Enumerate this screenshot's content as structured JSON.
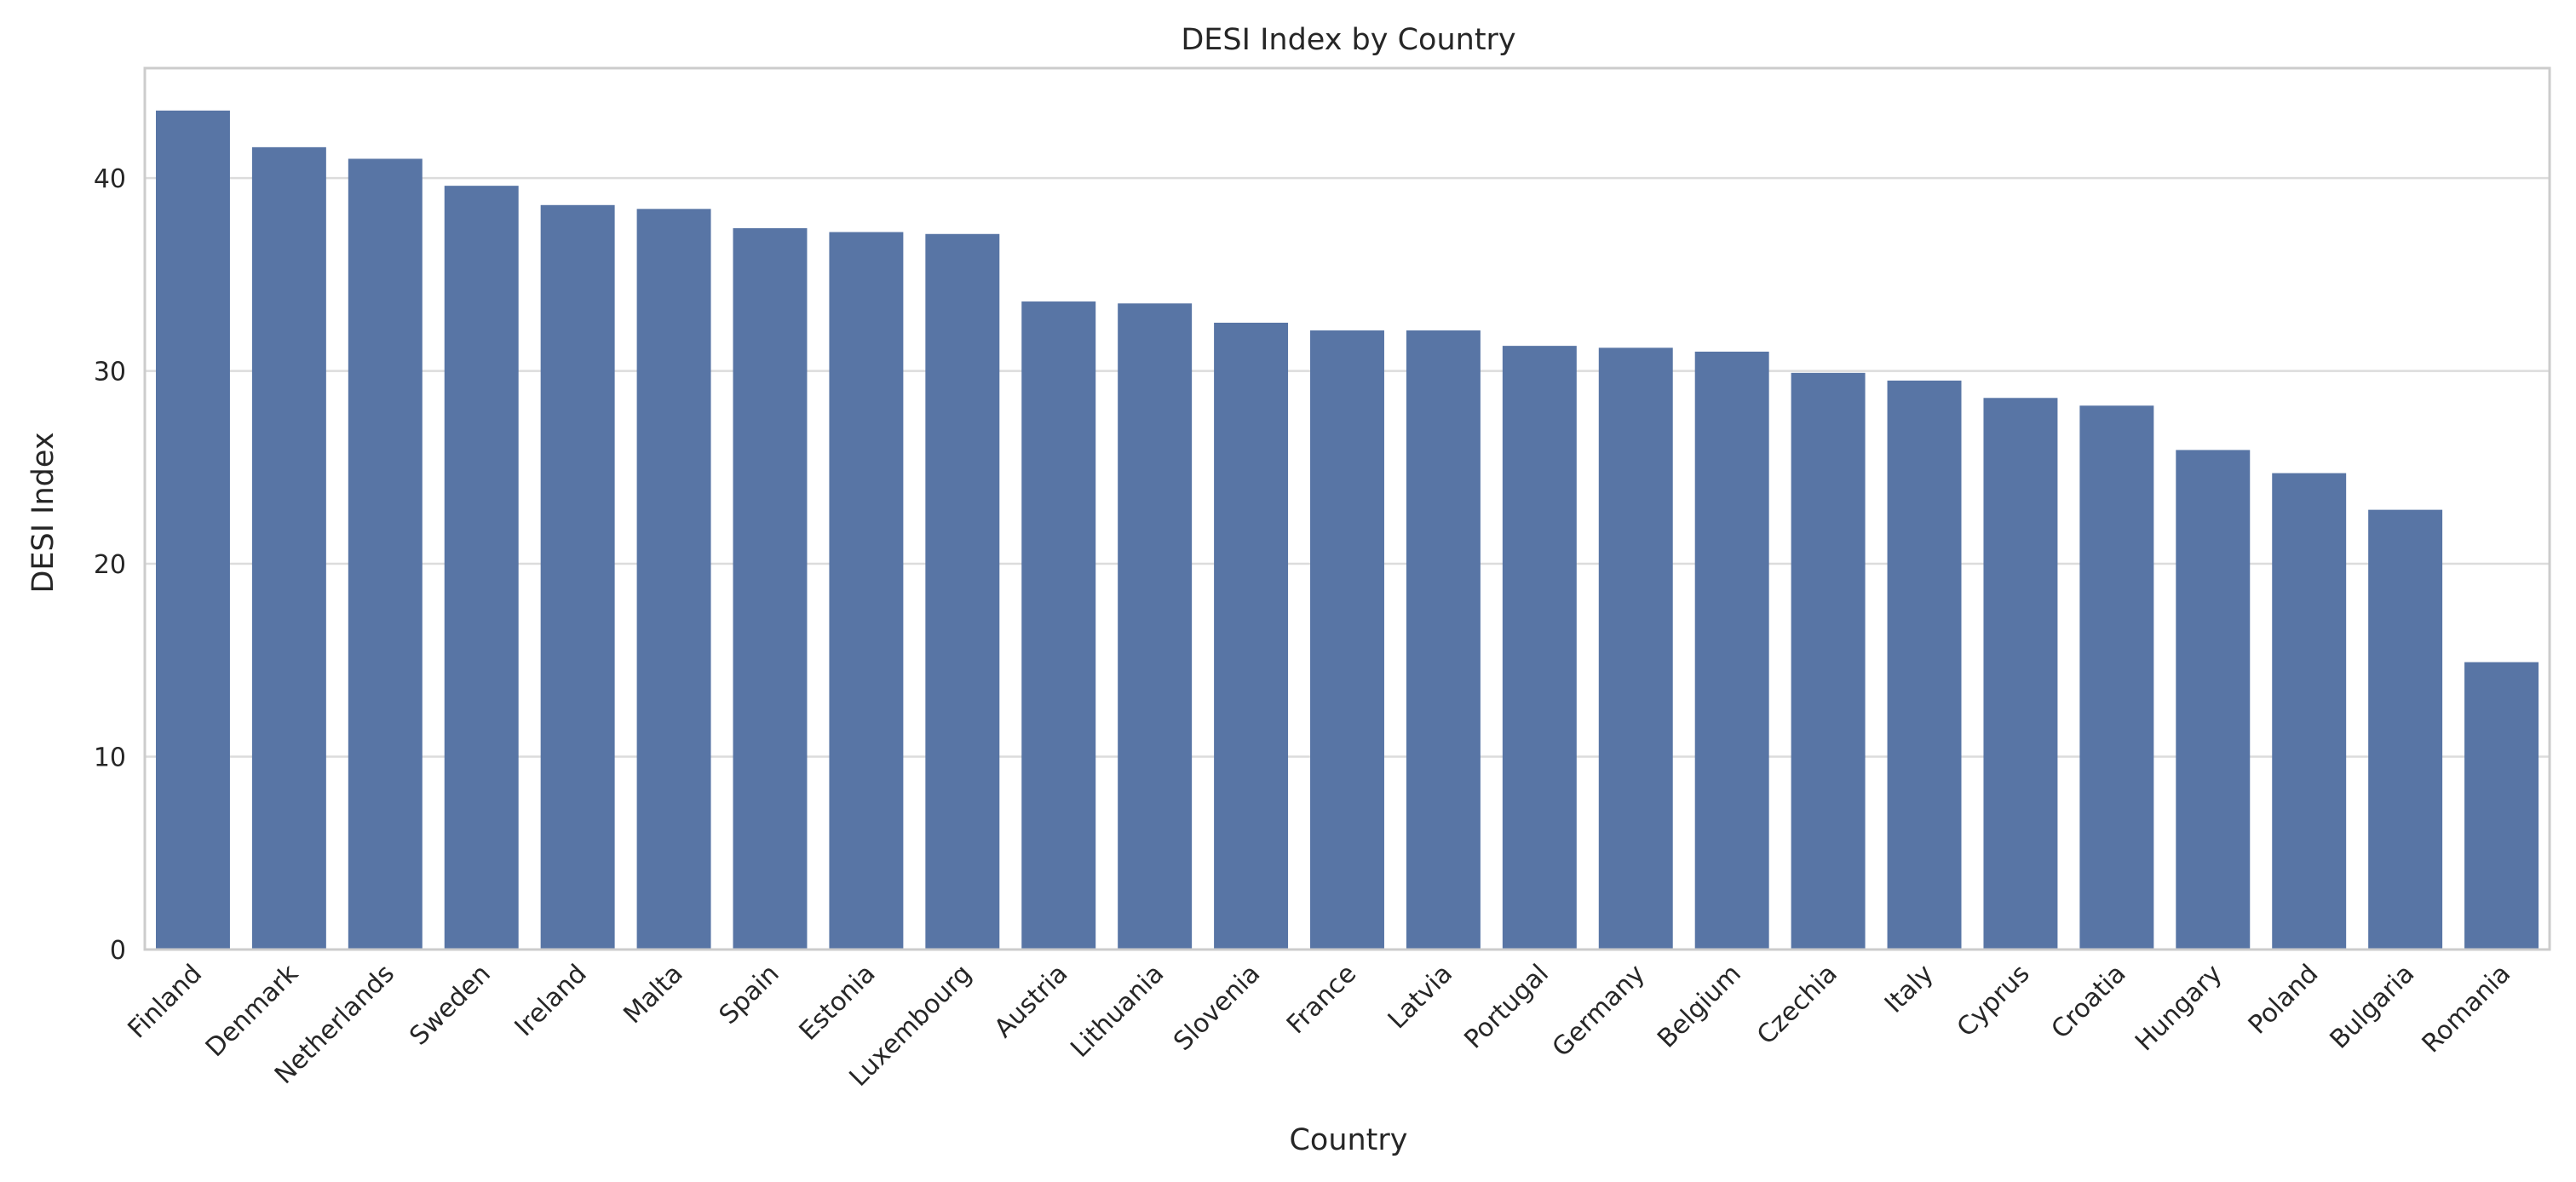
{
  "chart_data": {
    "type": "bar",
    "title": "DESI Index by Country",
    "xlabel": "Country",
    "ylabel": "DESI Index",
    "categories": [
      "Finland",
      "Denmark",
      "Netherlands",
      "Sweden",
      "Ireland",
      "Malta",
      "Spain",
      "Estonia",
      "Luxembourg",
      "Austria",
      "Lithuania",
      "Slovenia",
      "France",
      "Latvia",
      "Portugal",
      "Germany",
      "Belgium",
      "Czechia",
      "Italy",
      "Cyprus",
      "Croatia",
      "Hungary",
      "Poland",
      "Bulgaria",
      "Romania"
    ],
    "values": [
      43.5,
      41.6,
      41.0,
      39.6,
      38.6,
      38.4,
      37.4,
      37.2,
      37.1,
      33.6,
      33.5,
      32.5,
      32.1,
      32.1,
      31.3,
      31.2,
      31.0,
      29.9,
      29.5,
      28.6,
      28.2,
      25.9,
      24.7,
      22.8,
      14.9
    ],
    "ylim": [
      0,
      45.7
    ],
    "yticks": [
      0,
      10,
      20,
      30,
      40
    ],
    "grid": true,
    "bar_color": "#5875a5",
    "grid_color": "#dcdcdc",
    "spine_color": "#cccccc"
  }
}
